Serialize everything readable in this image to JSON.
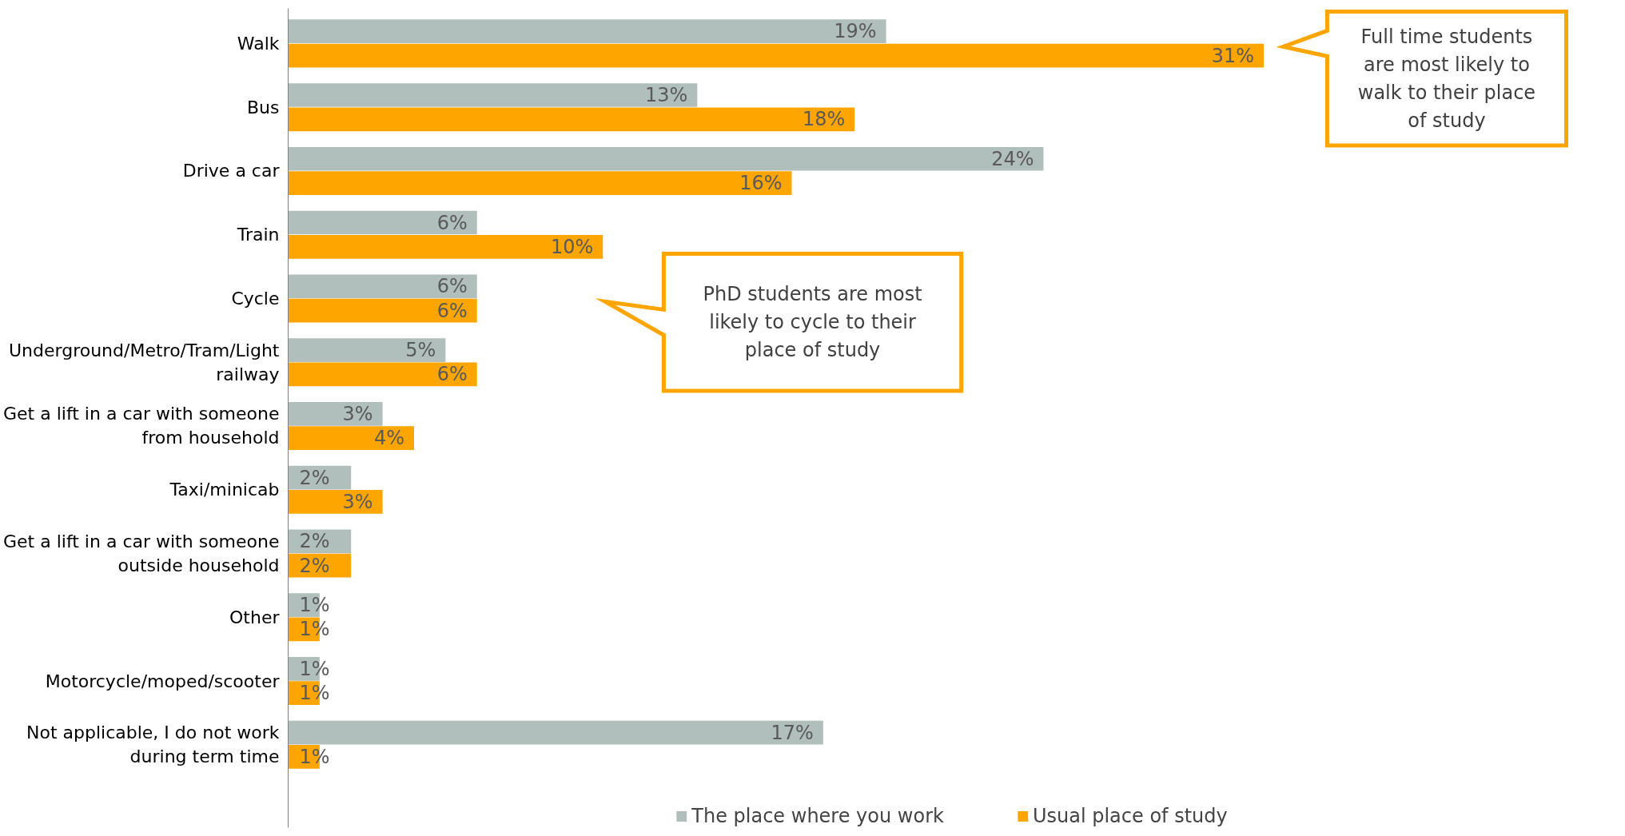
{
  "chart_data": {
    "type": "bar",
    "orientation": "horizontal",
    "categories": [
      "Walk",
      "Bus",
      "Drive a car",
      "Train",
      "Cycle",
      "Underground/Metro/Tram/Light railway",
      "Get a lift in a car with someone from household",
      "Taxi/minicab",
      "Get a lift in a car with someone outside household",
      "Other",
      "Motorcycle/moped/scooter",
      "Not applicable, I do not work during term time"
    ],
    "series": [
      {
        "name": "The place where you work",
        "color": "#b0bfbb",
        "values": [
          19,
          13,
          24,
          6,
          6,
          5,
          3,
          2,
          2,
          1,
          1,
          17
        ],
        "value_labels": [
          "19%",
          "13%",
          "24%",
          "6%",
          "6%",
          "5%",
          "3%",
          "2%",
          "2%",
          "1%",
          "1%",
          "17%"
        ]
      },
      {
        "name": "Usual place of study",
        "color": "#ffa500",
        "values": [
          31,
          18,
          16,
          10,
          6,
          6,
          4,
          3,
          2,
          1,
          1,
          1
        ],
        "value_labels": [
          "31%",
          "18%",
          "16%",
          "10%",
          "6%",
          "6%",
          "4%",
          "3%",
          "2%",
          "1%",
          "1%",
          "1%"
        ]
      }
    ],
    "legend": "bottom",
    "grid": false,
    "annotations": [
      "Full time students are most likely to walk to their place of study",
      "PhD students are most likely to cycle to their place of study"
    ]
  }
}
